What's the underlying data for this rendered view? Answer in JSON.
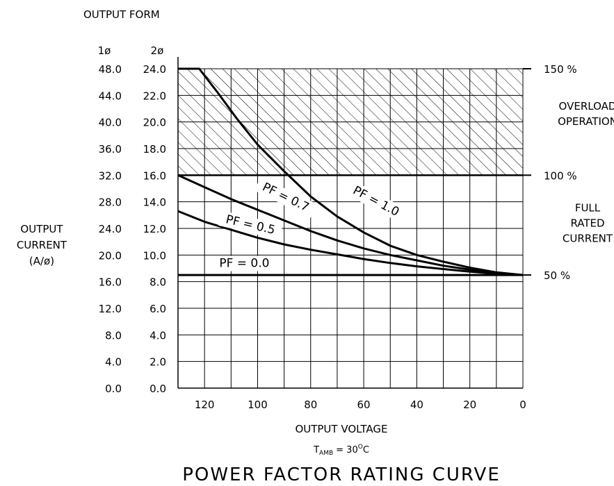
{
  "chart_data": {
    "type": "line",
    "title": "POWER FACTOR RATING CURVE",
    "subtitle": {
      "t": "T",
      "sub": "AMB",
      "rest": "= 30",
      "sup": "O",
      "unit": "C"
    },
    "output_form_label": "OUTPUT FORM",
    "phase_headers": [
      "1ø",
      "2ø"
    ],
    "xlabel": "OUTPUT VOLTAGE",
    "ylabel_lines": [
      "OUTPUT",
      "CURRENT",
      "(A/ø)"
    ],
    "xlim": [
      130,
      0
    ],
    "ylim": [
      0,
      24
    ],
    "x_ticks": [
      120,
      100,
      80,
      60,
      40,
      20,
      0
    ],
    "x_tick_labels": [
      "120",
      "100",
      "80",
      "60",
      "40",
      "20",
      "0"
    ],
    "y_ticks": [
      0,
      2,
      4,
      6,
      8,
      10,
      12,
      14,
      16,
      18,
      20,
      22,
      24
    ],
    "y_tick_labels_1ph": [
      "0.0",
      "4.0",
      "8.0",
      "12.0",
      "16.0",
      "20.0",
      "24.0",
      "28.0",
      "32.0",
      "36.0",
      "40.0",
      "44.0",
      "48.0"
    ],
    "y_tick_labels_2ph": [
      "0.0",
      "2.0",
      "4.0",
      "6.0",
      "8.0",
      "10.0",
      "12.0",
      "14.0",
      "16.0",
      "18.0",
      "20.0",
      "22.0",
      "24.0"
    ],
    "grid": true,
    "overload_region": {
      "y_from": 16,
      "y_to": 24
    },
    "right_annotations": [
      {
        "y": 24,
        "text": [
          "150 %"
        ]
      },
      {
        "y": 16,
        "text": [
          "100 %"
        ]
      },
      {
        "y": 8.5,
        "text": [
          "50 %"
        ]
      }
    ],
    "region_labels": [
      {
        "y": 20.6,
        "text": [
          "OVERLOAD",
          "OPERATION"
        ]
      },
      {
        "y": 12.4,
        "text": [
          "FULL",
          "RATED",
          "CURRENT"
        ]
      }
    ],
    "series": [
      {
        "name": "PF = 1.0",
        "x": [
          130,
          122,
          115,
          108,
          100,
          90,
          80,
          70,
          60,
          50,
          40,
          30,
          20,
          10,
          0
        ],
        "y": [
          24,
          24,
          22.2,
          20.3,
          18.3,
          16.3,
          14.4,
          12.9,
          11.7,
          10.7,
          10,
          9.5,
          9.05,
          8.7,
          8.5
        ]
      },
      {
        "name": "PF = 0.7",
        "x": [
          130,
          120,
          110,
          100,
          90,
          80,
          70,
          60,
          50,
          40,
          30,
          20,
          10,
          0
        ],
        "y": [
          16,
          15.1,
          14.2,
          13.4,
          12.6,
          11.8,
          11.1,
          10.5,
          10,
          9.6,
          9.2,
          8.9,
          8.65,
          8.5
        ]
      },
      {
        "name": "PF = 0.5",
        "x": [
          130,
          120,
          110,
          100,
          90,
          80,
          70,
          60,
          50,
          40,
          30,
          20,
          10,
          0
        ],
        "y": [
          13.3,
          12.5,
          11.9,
          11.3,
          10.8,
          10.4,
          10.05,
          9.7,
          9.4,
          9.15,
          8.95,
          8.75,
          8.6,
          8.5
        ]
      },
      {
        "name": "PF = 0.0",
        "x": [
          130,
          0
        ],
        "y": [
          8.5,
          8.5
        ]
      }
    ],
    "series_labels": [
      {
        "series": "PF = 1.0",
        "x": 56,
        "y": 13.8,
        "angle": 28
      },
      {
        "series": "PF = 0.7",
        "x": 90,
        "y": 14.1,
        "angle": 26
      },
      {
        "series": "PF = 0.5",
        "x": 103,
        "y": 12.0,
        "angle": 13
      },
      {
        "series": "PF = 0.0",
        "x": 105,
        "y": 9.1,
        "angle": 0
      }
    ]
  }
}
